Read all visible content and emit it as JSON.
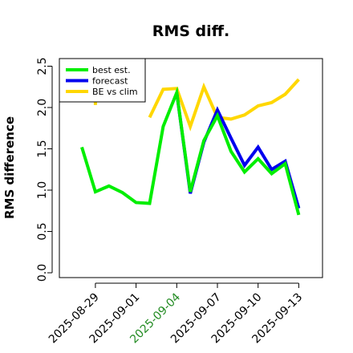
{
  "chart_data": {
    "type": "line",
    "title": "RMS diff.",
    "xlabel": "",
    "ylabel": "RMS difference",
    "x": [
      "2025-08-28",
      "2025-08-29",
      "2025-08-30",
      "2025-08-31",
      "2025-09-01",
      "2025-09-02",
      "2025-09-03",
      "2025-09-04",
      "2025-09-05",
      "2025-09-06",
      "2025-09-07",
      "2025-09-08",
      "2025-09-09",
      "2025-09-10",
      "2025-09-11",
      "2025-09-12",
      "2025-09-13"
    ],
    "xticks": [
      "2025-08-29",
      "2025-09-01",
      "2025-09-04",
      "2025-09-07",
      "2025-09-10",
      "2025-09-13"
    ],
    "highlighted_xtick": "2025-09-04",
    "ylim": [
      -0.05,
      2.6
    ],
    "yticks": [
      "0.0",
      "0.5",
      "1.0",
      "1.5",
      "2.0",
      "2.5"
    ],
    "grid": false,
    "legend_position": "top-left",
    "series": [
      {
        "name": "best est.",
        "color": "#00ee00",
        "values": [
          1.52,
          0.98,
          1.05,
          0.97,
          0.85,
          0.84,
          1.77,
          2.18,
          0.98,
          1.6,
          1.9,
          1.47,
          1.22,
          1.38,
          1.2,
          1.32,
          0.7
        ]
      },
      {
        "name": "forecast",
        "color": "#0000ee",
        "values": [
          null,
          null,
          null,
          null,
          null,
          null,
          null,
          2.18,
          0.96,
          1.58,
          1.97,
          1.63,
          1.3,
          1.52,
          1.25,
          1.35,
          0.78
        ]
      },
      {
        "name": "BE vs clim",
        "color": "#ffd700",
        "values": [
          null,
          2.05,
          null,
          null,
          null,
          1.88,
          2.22,
          2.23,
          1.77,
          2.25,
          1.88,
          1.86,
          1.91,
          2.02,
          2.06,
          2.16,
          2.34
        ]
      }
    ]
  }
}
